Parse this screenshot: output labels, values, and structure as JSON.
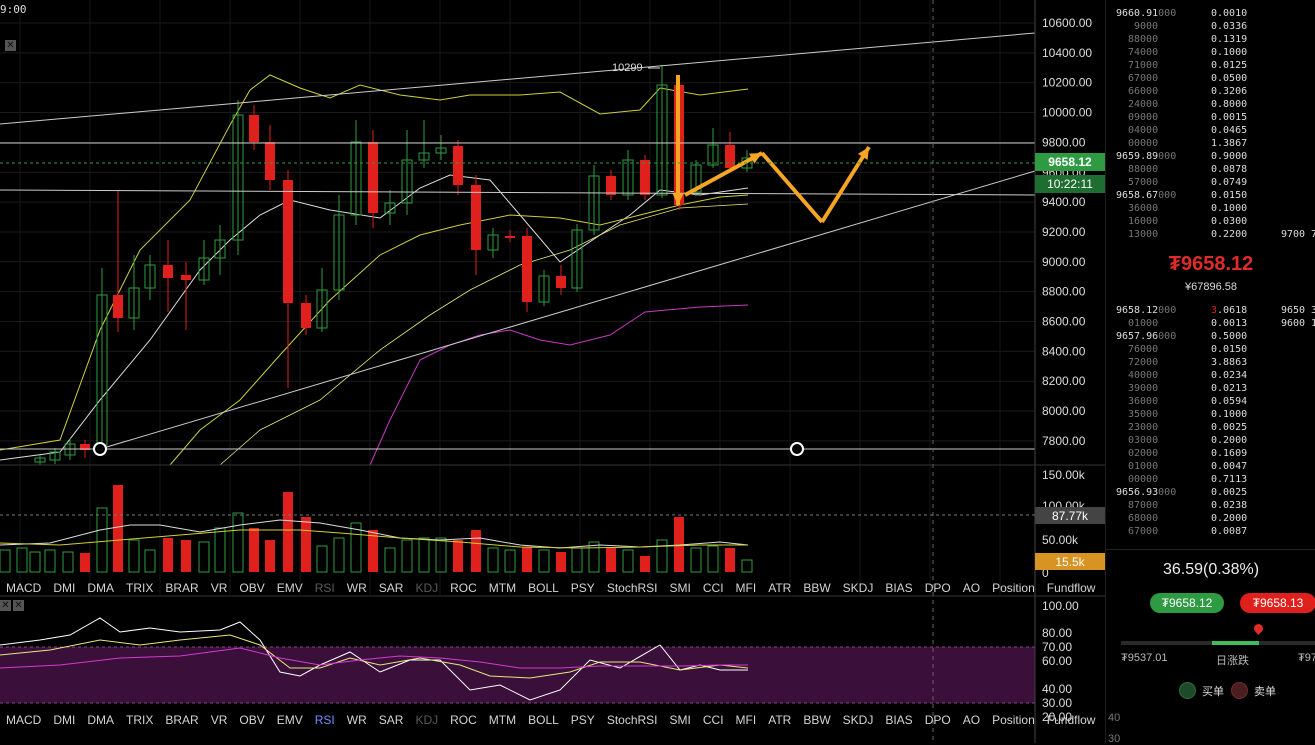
{
  "header": {
    "clock": "9:00"
  },
  "price_axis": {
    "labels": [
      "10600.00",
      "10400.00",
      "10200.00",
      "10000.00",
      "9800.00",
      "9600.00",
      "9400.00",
      "9200.00",
      "9000.00",
      "8800.00",
      "8600.00",
      "8400.00",
      "8200.00",
      "8000.00",
      "7800.00"
    ],
    "last_price": "9658.12",
    "countdown": "10:22:11",
    "peak_label": "10299"
  },
  "volume_axis": {
    "labels": [
      "150.00k",
      "100.00k",
      "50.00k",
      "0"
    ],
    "ma_value": "87.77k",
    "current_value": "15.5k"
  },
  "rsi_axis": {
    "labels": [
      "100.00",
      "80.00",
      "70.00",
      "60.00",
      "40.00",
      "30.00",
      "20.00"
    ]
  },
  "indicator_tabs": [
    {
      "label": "MACD",
      "state": "normal"
    },
    {
      "label": "DMI",
      "state": "normal"
    },
    {
      "label": "DMA",
      "state": "normal"
    },
    {
      "label": "TRIX",
      "state": "normal"
    },
    {
      "label": "BRAR",
      "state": "normal"
    },
    {
      "label": "VR",
      "state": "normal"
    },
    {
      "label": "OBV",
      "state": "normal"
    },
    {
      "label": "EMV",
      "state": "normal"
    },
    {
      "label": "RSI",
      "state": "dim"
    },
    {
      "label": "WR",
      "state": "normal"
    },
    {
      "label": "SAR",
      "state": "normal"
    },
    {
      "label": "KDJ",
      "state": "dim"
    },
    {
      "label": "ROC",
      "state": "normal"
    },
    {
      "label": "MTM",
      "state": "normal"
    },
    {
      "label": "BOLL",
      "state": "normal"
    },
    {
      "label": "PSY",
      "state": "normal"
    },
    {
      "label": "StochRSI",
      "state": "normal"
    },
    {
      "label": "SMI",
      "state": "normal"
    },
    {
      "label": "CCI",
      "state": "normal"
    },
    {
      "label": "MFI",
      "state": "normal"
    },
    {
      "label": "ATR",
      "state": "normal"
    },
    {
      "label": "BBW",
      "state": "normal"
    },
    {
      "label": "SKDJ",
      "state": "normal"
    },
    {
      "label": "BIAS",
      "state": "normal"
    },
    {
      "label": "DPO",
      "state": "normal"
    },
    {
      "label": "AO",
      "state": "normal"
    },
    {
      "label": "Position",
      "state": "normal"
    },
    {
      "label": "Fundflow",
      "state": "normal"
    }
  ],
  "indicator_tabs_2": [
    {
      "label": "MACD",
      "state": "normal"
    },
    {
      "label": "DMI",
      "state": "normal"
    },
    {
      "label": "DMA",
      "state": "normal"
    },
    {
      "label": "TRIX",
      "state": "normal"
    },
    {
      "label": "BRAR",
      "state": "normal"
    },
    {
      "label": "VR",
      "state": "normal"
    },
    {
      "label": "OBV",
      "state": "normal"
    },
    {
      "label": "EMV",
      "state": "normal"
    },
    {
      "label": "RSI",
      "state": "active"
    },
    {
      "label": "WR",
      "state": "normal"
    },
    {
      "label": "SAR",
      "state": "normal"
    },
    {
      "label": "KDJ",
      "state": "dim"
    },
    {
      "label": "ROC",
      "state": "normal"
    },
    {
      "label": "MTM",
      "state": "normal"
    },
    {
      "label": "BOLL",
      "state": "normal"
    },
    {
      "label": "PSY",
      "state": "normal"
    },
    {
      "label": "StochRSI",
      "state": "normal"
    },
    {
      "label": "SMI",
      "state": "normal"
    },
    {
      "label": "CCI",
      "state": "normal"
    },
    {
      "label": "MFI",
      "state": "normal"
    },
    {
      "label": "ATR",
      "state": "normal"
    },
    {
      "label": "BBW",
      "state": "normal"
    },
    {
      "label": "SKDJ",
      "state": "normal"
    },
    {
      "label": "BIAS",
      "state": "normal"
    },
    {
      "label": "DPO",
      "state": "normal"
    },
    {
      "label": "AO",
      "state": "normal"
    },
    {
      "label": "Position",
      "state": "normal"
    },
    {
      "label": "Fundflow",
      "state": "normal"
    }
  ],
  "colors": {
    "up": "#2f9e3f",
    "down": "#e0201c",
    "accent_orange": "#f5a623",
    "price_green": "#2e9b43",
    "rsi_band": "#3a0f3a",
    "volume_box": "#d79423"
  },
  "orderbook": {
    "asks": [
      {
        "p": "9660.91",
        "pd": "000",
        "q": "0.0010"
      },
      {
        "p": "",
        "pd": "9000",
        "q": "0.0336"
      },
      {
        "p": "",
        "pd": "88000",
        "q": "0.1319"
      },
      {
        "p": "",
        "pd": "74000",
        "q": "0.1000"
      },
      {
        "p": "",
        "pd": "71000",
        "q": "0.0125"
      },
      {
        "p": "",
        "pd": "67000",
        "q": "0.0500"
      },
      {
        "p": "",
        "pd": "66000",
        "q": "0.3206"
      },
      {
        "p": "",
        "pd": "24000",
        "q": "0.8000"
      },
      {
        "p": "",
        "pd": "09000",
        "q": "0.0015"
      },
      {
        "p": "",
        "pd": "04000",
        "q": "0.0465"
      },
      {
        "p": "",
        "pd": "00000",
        "q": "1.3867"
      },
      {
        "p": "9659.89",
        "pd": "000",
        "q": "0.9000"
      },
      {
        "p": "",
        "pd": "88000",
        "q": "0.0878"
      },
      {
        "p": "",
        "pd": "57000",
        "q": "0.0749"
      },
      {
        "p": "9658.67",
        "pd": "000",
        "q": "0.0150"
      },
      {
        "p": "",
        "pd": "36000",
        "q": "0.1000"
      },
      {
        "p": "",
        "pd": "16000",
        "q": "0.0300"
      },
      {
        "p": "",
        "pd": "13000",
        "q": "0.2200",
        "s1": "9700",
        "s2": "7"
      }
    ],
    "last_price": "₮9658.12",
    "cny_price": "¥67896.58",
    "bids": [
      {
        "p": "9658.12",
        "pd": "000",
        "qr": "3",
        "q": ".0618",
        "s1": "9650",
        "s2": "3"
      },
      {
        "p": "",
        "pd": "01000",
        "q": "0.0013",
        "s1": "9600",
        "s2": "1"
      },
      {
        "p": "9657.96",
        "pd": "000",
        "q": "0.5000"
      },
      {
        "p": "",
        "pd": "76000",
        "q": "0.0150"
      },
      {
        "p": "",
        "pd": "72000",
        "q": "3.8863"
      },
      {
        "p": "",
        "pd": "40000",
        "q": "0.0234"
      },
      {
        "p": "",
        "pd": "39000",
        "q": "0.0213"
      },
      {
        "p": "",
        "pd": "36000",
        "q": "0.0594"
      },
      {
        "p": "",
        "pd": "35000",
        "q": "0.1000"
      },
      {
        "p": "",
        "pd": "23000",
        "q": "0.0025"
      },
      {
        "p": "",
        "pd": "03000",
        "q": "0.2000"
      },
      {
        "p": "",
        "pd": "02000",
        "q": "0.1609"
      },
      {
        "p": "",
        "pd": "01000",
        "q": "0.0047"
      },
      {
        "p": "",
        "pd": "00000",
        "q": "0.7113"
      },
      {
        "p": "9656.93",
        "pd": "000",
        "q": "0.0025"
      },
      {
        "p": "",
        "pd": "87000",
        "q": "0.0238"
      },
      {
        "p": "",
        "pd": "68000",
        "q": "0.2000"
      },
      {
        "p": "",
        "pd": "67000",
        "q": "0.0087"
      }
    ]
  },
  "ticker": {
    "change": "36.59(0.38%)",
    "buy_price": "₮9658.12",
    "sell_price": "₮9658.13",
    "range_low": "₮9537.01",
    "range_label": "日涨跌",
    "range_high": "₮97",
    "buy_label": "买单",
    "sell_label": "卖单",
    "footer_1": "40",
    "footer_2": "30"
  }
}
